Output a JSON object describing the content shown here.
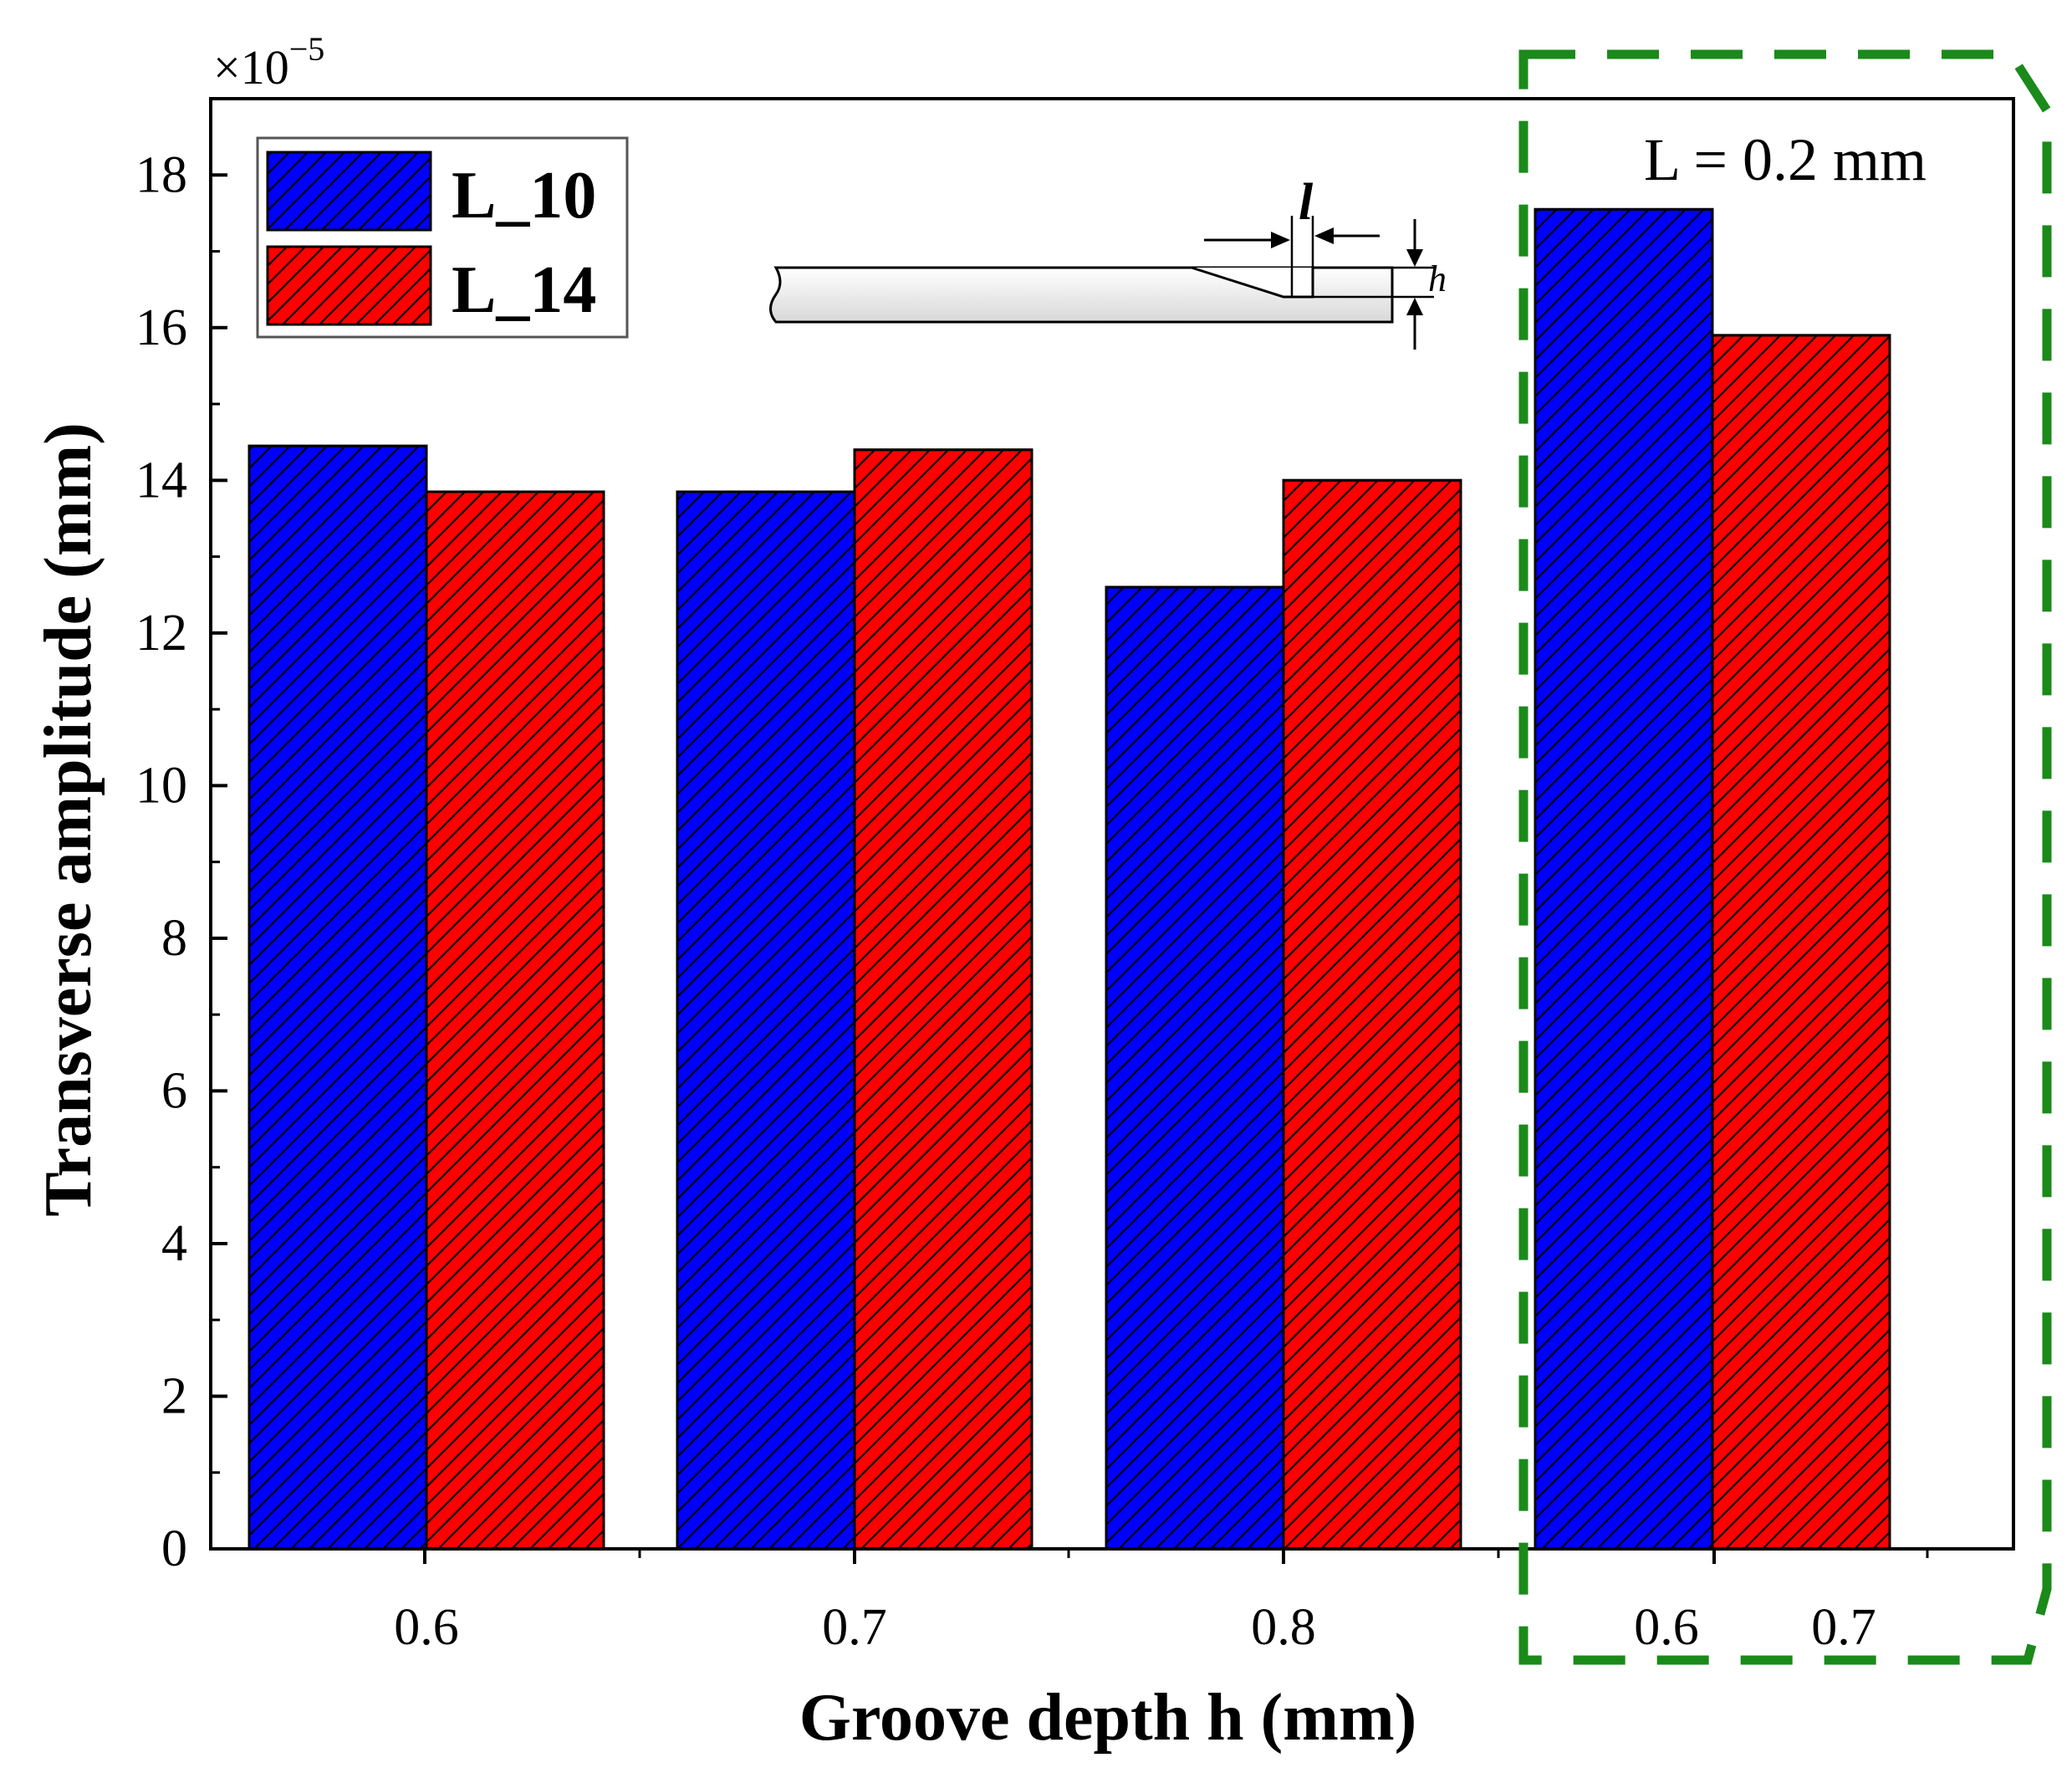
{
  "chart_data": {
    "type": "bar",
    "xlabel": "Groove depth h (mm)",
    "ylabel": "Transverse amplitude (mm)",
    "y_multiplier_base": "×10",
    "y_multiplier_exp": "−5",
    "ylim": [
      0,
      19
    ],
    "yticks": [
      0,
      2,
      4,
      6,
      8,
      10,
      12,
      14,
      16,
      18
    ],
    "grid": false,
    "legend_position": "top-left",
    "groups": [
      {
        "label": "0.6",
        "values": [
          14.45,
          13.85
        ]
      },
      {
        "label": "0.7",
        "values": [
          13.85,
          14.4
        ]
      },
      {
        "label": "0.8",
        "values": [
          12.6,
          14.0
        ]
      },
      {
        "labels": [
          "0.6",
          "0.7"
        ],
        "values": [
          17.55,
          15.9
        ]
      }
    ],
    "series": [
      {
        "name": "L_10",
        "color": "#0000ff"
      },
      {
        "name": "L_14",
        "color": "#ff0000"
      }
    ],
    "annotation": {
      "text": "L = 0.2 mm",
      "box_color": "#1a8a1a"
    },
    "inset": {
      "length_label": "l",
      "depth_label": "h"
    }
  }
}
